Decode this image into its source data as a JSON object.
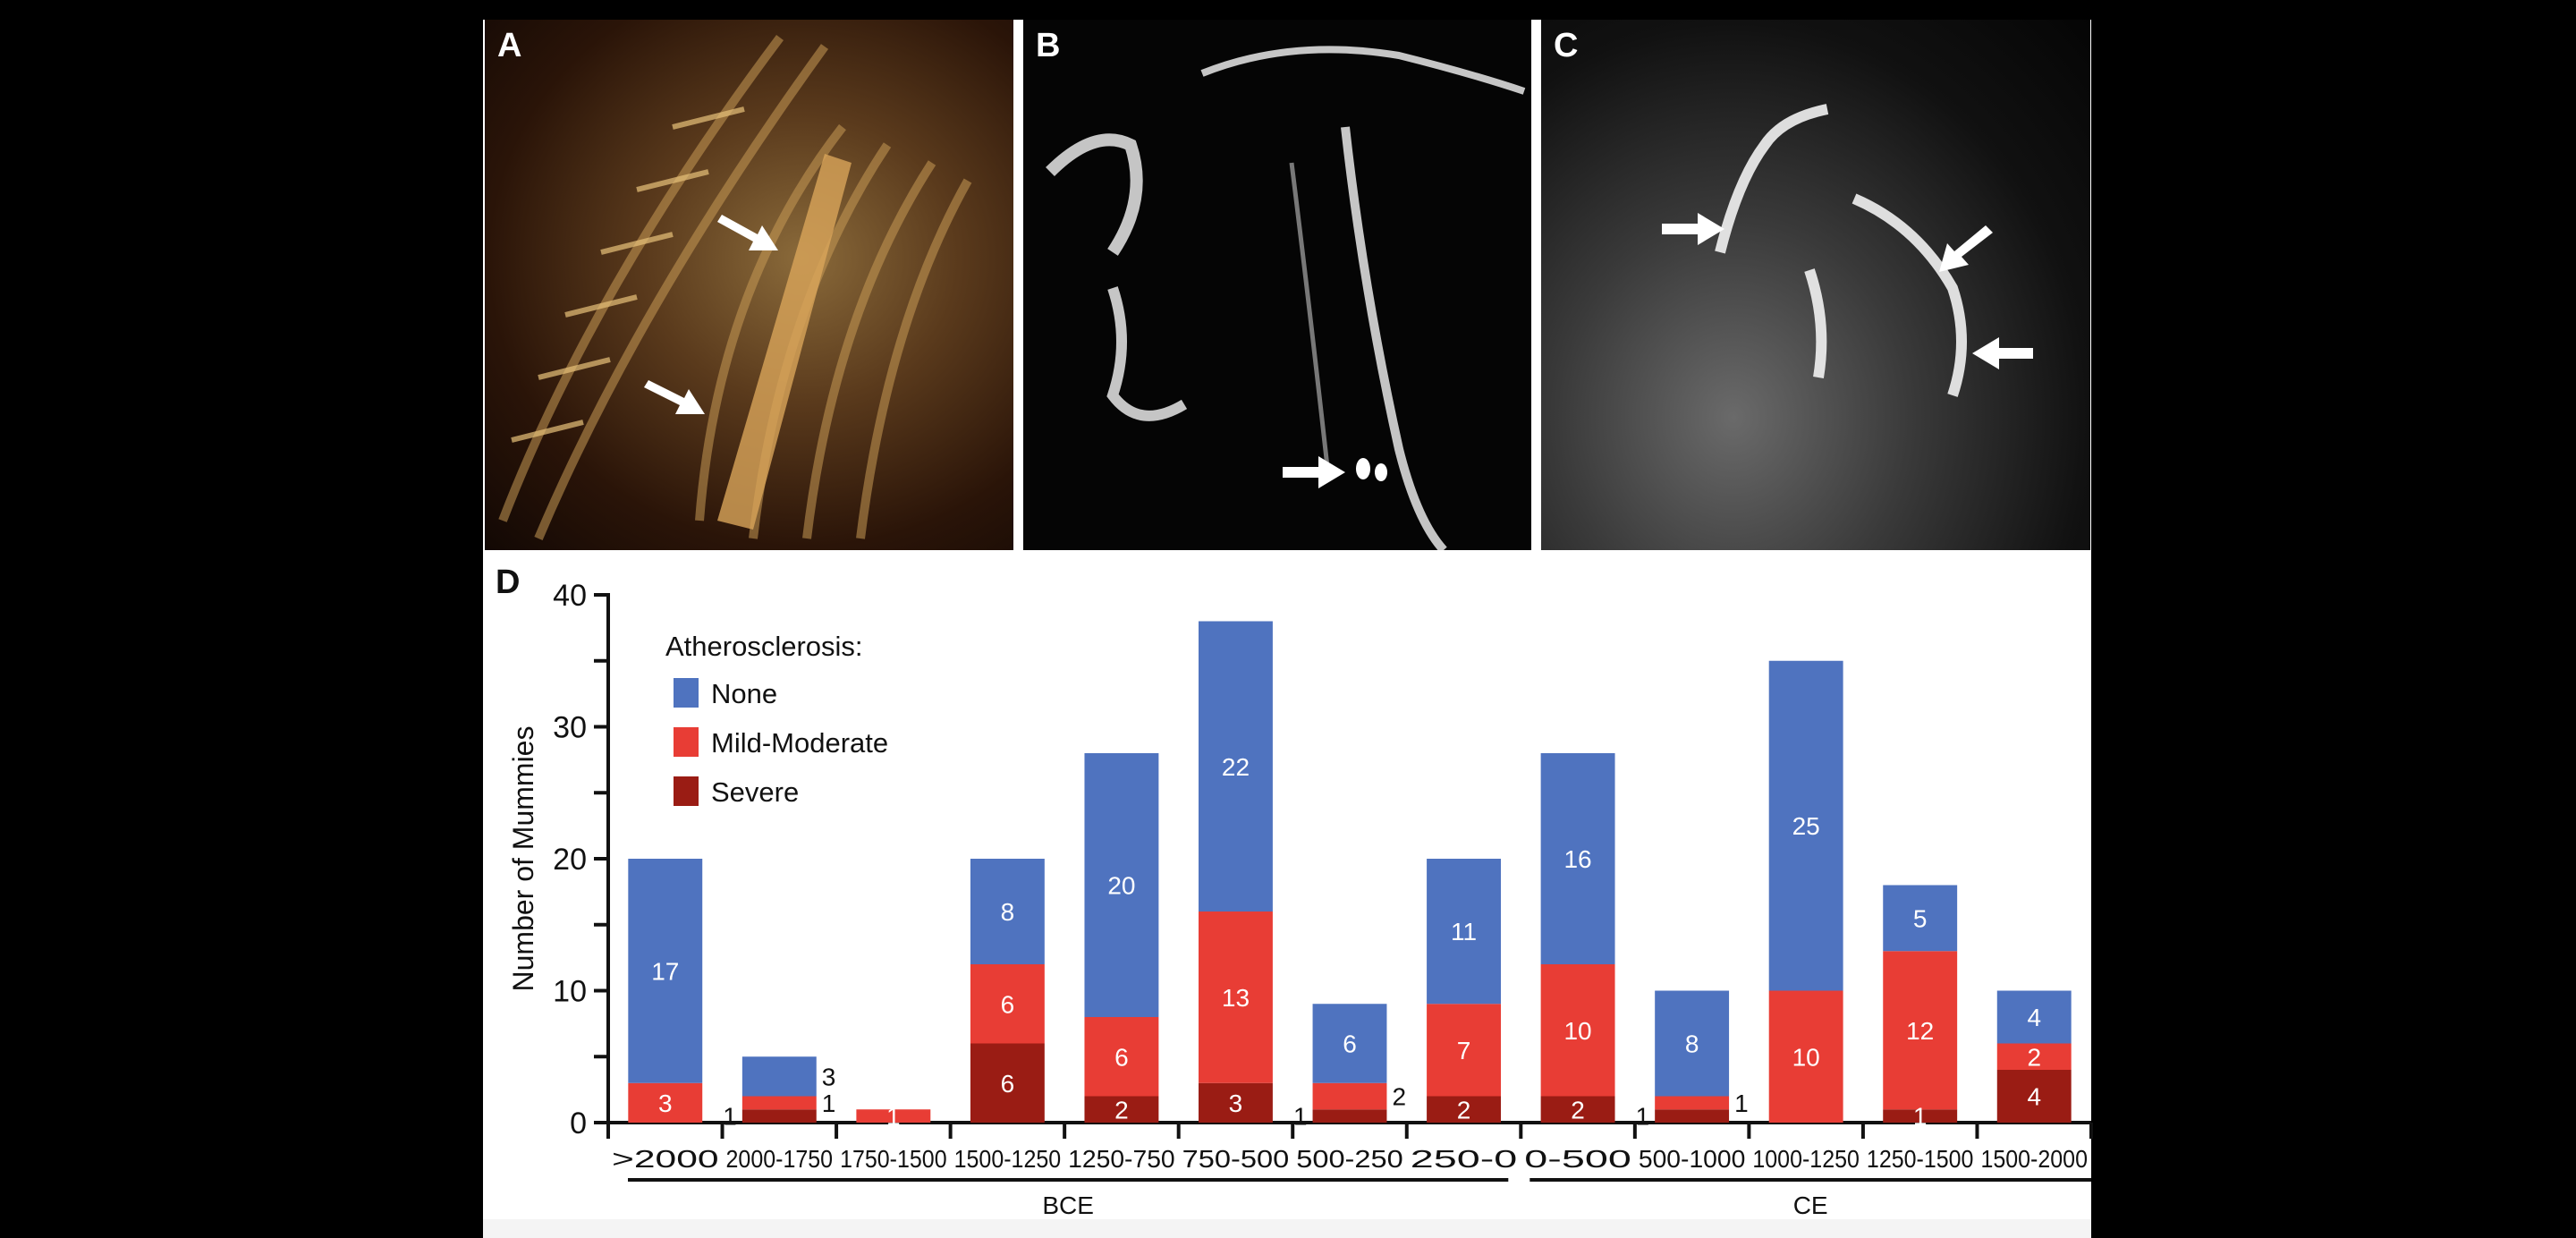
{
  "panels": {
    "a_label": "A",
    "b_label": "B",
    "c_label": "C",
    "d_label": "D"
  },
  "colors": {
    "none": "#4f73bf",
    "mild": "#e83d35",
    "severe": "#9a1c14"
  },
  "chart_data": {
    "type": "bar",
    "stacked": true,
    "title": "",
    "ylabel": "Number of Mummies",
    "xlabel": "",
    "ylim": [
      0,
      40
    ],
    "yticks": [
      0,
      10,
      20,
      30,
      40
    ],
    "legend_title": "Atherosclerosis:",
    "legend_position": "top-left",
    "categories": [
      ">2000",
      "2000-1750",
      "1750-1500",
      "1500-1250",
      "1250-750",
      "750-500",
      "500-250",
      "250-0",
      "0-500",
      "500-1000",
      "1000-1250",
      "1250-1500",
      "1500-2000"
    ],
    "groups": [
      {
        "label": "BCE",
        "from": 0,
        "to": 7
      },
      {
        "label": "CE",
        "from": 8,
        "to": 12
      }
    ],
    "series": [
      {
        "name": "Severe",
        "key": "severe",
        "values": [
          0,
          1,
          0,
          6,
          2,
          3,
          1,
          2,
          2,
          1,
          0,
          1,
          4
        ]
      },
      {
        "name": "Mild-Moderate",
        "key": "mild",
        "values": [
          3,
          1,
          1,
          6,
          6,
          13,
          2,
          7,
          10,
          1,
          10,
          12,
          2
        ]
      },
      {
        "name": "None",
        "key": "none",
        "values": [
          17,
          3,
          0,
          8,
          20,
          22,
          6,
          11,
          16,
          8,
          25,
          5,
          4
        ]
      }
    ]
  }
}
